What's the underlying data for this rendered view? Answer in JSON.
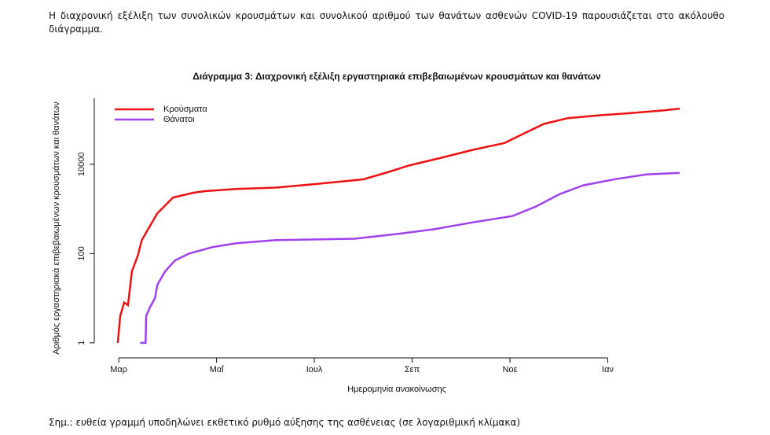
{
  "intro": "Η διαχρονική εξέλιξη των συνολικών κρουσμάτων και συνολικού αριθμού των θανάτων ασθενών COVID-19 παρουσιάζεται στο ακόλουθο διάγραμμα.",
  "note": "Σημ.: ευθεία γραμμή υποδηλώνει εκθετικό ρυθμό αύξησης της ασθένειας (σε λογαριθμική κλίμακα)",
  "chart_data": {
    "type": "line",
    "title": "Διάγραμμα 3: Διαχρονική εξέλιξη εργαστηριακά επιβεβαιωμένων κρουσμάτων και θανάτων",
    "x_label": "Ημερομηνία ανακοίνωσης",
    "y_label": "Αριθμός εργαστηριακά επιβεβαιωμένων κρουσμάτων και θανάτων",
    "log_y": true,
    "legend": "topleft",
    "xlim": [
      2.5,
      14.84
    ],
    "ylim": [
      0.46,
      300000
    ],
    "xticks": [
      {
        "value": 3,
        "label": "Μαρ"
      },
      {
        "value": 5,
        "label": "Μαΐ"
      },
      {
        "value": 7,
        "label": "Ιουλ"
      },
      {
        "value": 9,
        "label": "Σεπ"
      },
      {
        "value": 11,
        "label": "Νοε"
      },
      {
        "value": 13,
        "label": "Ιαν"
      }
    ],
    "yticks": [
      1,
      100,
      10000
    ],
    "series": [
      {
        "name": "Κρούσματα",
        "color": "#ee1111",
        "x": [
          2.98,
          3.03,
          3.11,
          3.19,
          3.27,
          3.39,
          3.47,
          3.63,
          3.79,
          4.11,
          4.52,
          4.76,
          5.4,
          6.21,
          7.02,
          8.0,
          8.47,
          8.95,
          9.6,
          10.24,
          10.89,
          11.21,
          11.69,
          12.18,
          12.82,
          13.47,
          14.11,
          14.47
        ],
        "values": [
          1,
          4,
          8,
          7,
          40,
          90,
          200,
          400,
          800,
          1800,
          2300,
          2500,
          2800,
          3000,
          3600,
          4600,
          6500,
          9500,
          14000,
          21000,
          30000,
          44600,
          80000,
          108000,
          125000,
          140000,
          160000,
          176000
        ]
      },
      {
        "name": "Θάνατοι",
        "color": "#a040ee",
        "x": [
          3.44,
          3.55,
          3.56,
          3.63,
          3.74,
          3.79,
          3.95,
          4.15,
          4.44,
          4.92,
          5.4,
          6.21,
          7.82,
          8.63,
          9.44,
          10.24,
          11.05,
          11.53,
          12.02,
          12.5,
          13.15,
          13.79,
          14.47
        ],
        "values": [
          1,
          1,
          4,
          6,
          10,
          20,
          40,
          70,
          100,
          140,
          170,
          200,
          215,
          270,
          350,
          500,
          690,
          1130,
          2150,
          3370,
          4640,
          5900,
          6400
        ]
      }
    ]
  }
}
